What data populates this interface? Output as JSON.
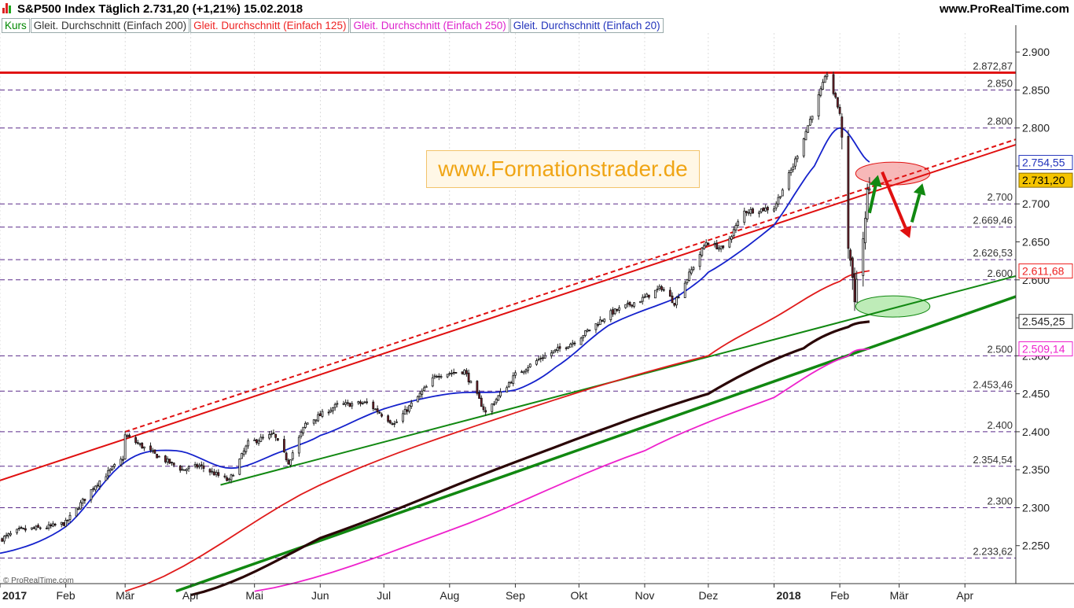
{
  "header": {
    "title": "S&P500 Index    Täglich    2.731,20 (+1,21%)    15.02.2018",
    "source": "www.ProRealTime.com"
  },
  "legend": [
    {
      "label": "Kurs",
      "color": "#008800"
    },
    {
      "label": "Gleit. Durchschnitt (Einfach 200)",
      "color": "#333333"
    },
    {
      "label": "Gleit. Durchschnitt (Einfach 125)",
      "color": "#ee2222"
    },
    {
      "label": "Gleit. Durchschnitt (Einfach 250)",
      "color": "#dd22cc"
    },
    {
      "label": "Gleit. Durchschnitt (Einfach 20)",
      "color": "#2233bb"
    }
  ],
  "watermark": "www.Formationstrader.de",
  "copyright": "© ProRealTime.com",
  "colors": {
    "up_candle": "#ffffff",
    "down_candle": "#7a1f2a",
    "wick": "#222222",
    "resistance": "#e01010",
    "support": "#118811",
    "ma200": "#2a0606",
    "ma125": "#e01b1b",
    "ma250": "#ee22cc",
    "ma20": "#1522cc",
    "dashed_level": "#5a2a8a",
    "grid": "#c8c8c8",
    "arrow_up": "#118811",
    "arrow_down": "#e01010"
  },
  "chart_data": {
    "type": "candlestick",
    "title": "S&P500 Index",
    "period": "Täglich",
    "last_price": "2.731,20",
    "change": "+1,21%",
    "date": "15.02.2018",
    "ylim": [
      2200,
      2925
    ],
    "xlim": [
      "2017-01-01",
      "2018-04-25"
    ],
    "y_ticks": [
      "2.250",
      "2.300",
      "2.350",
      "2.400",
      "2.450",
      "2.500",
      "2.550",
      "2.600",
      "2.650",
      "2.700",
      "2.750",
      "2.800",
      "2.850",
      "2.900"
    ],
    "x_ticks": [
      {
        "date": "2017-01-01",
        "label": "2017",
        "bold": true
      },
      {
        "date": "2017-02-01",
        "label": "Feb"
      },
      {
        "date": "2017-03-01",
        "label": "Mär"
      },
      {
        "date": "2017-04-01",
        "label": "Apr"
      },
      {
        "date": "2017-05-01",
        "label": "Mai"
      },
      {
        "date": "2017-06-01",
        "label": "Jun"
      },
      {
        "date": "2017-07-01",
        "label": "Jul"
      },
      {
        "date": "2017-08-01",
        "label": "Aug"
      },
      {
        "date": "2017-09-01",
        "label": "Sep"
      },
      {
        "date": "2017-10-01",
        "label": "Okt"
      },
      {
        "date": "2017-11-01",
        "label": "Nov"
      },
      {
        "date": "2017-12-01",
        "label": "Dez"
      },
      {
        "date": "2018-01-01",
        "label": "2018",
        "bold": true
      },
      {
        "date": "2018-02-01",
        "label": "Feb"
      },
      {
        "date": "2018-03-01",
        "label": "Mär"
      },
      {
        "date": "2018-04-01",
        "label": "Apr"
      }
    ],
    "horizontal_levels": [
      {
        "value": 2872.87,
        "label": "2.872,87",
        "style": "solid-red"
      },
      {
        "value": 2850,
        "label": "2.850",
        "style": "dashed"
      },
      {
        "value": 2800,
        "label": "2.800",
        "style": "dashed"
      },
      {
        "value": 2700,
        "label": "2.700",
        "style": "dashed"
      },
      {
        "value": 2669.46,
        "label": "2.669,46",
        "style": "dashed"
      },
      {
        "value": 2626.53,
        "label": "2.626,53",
        "style": "dashed"
      },
      {
        "value": 2600,
        "label": "2.600",
        "style": "dashed"
      },
      {
        "value": 2500,
        "label": "2.500",
        "style": "dashed"
      },
      {
        "value": 2453.46,
        "label": "2.453,46",
        "style": "dashed"
      },
      {
        "value": 2400,
        "label": "2.400",
        "style": "dashed"
      },
      {
        "value": 2354.54,
        "label": "2.354,54",
        "style": "dashed"
      },
      {
        "value": 2300,
        "label": "2.300",
        "style": "dashed"
      },
      {
        "value": 2233.62,
        "label": "2.233,62",
        "style": "dashed"
      }
    ],
    "value_tags": [
      {
        "value": 2754.55,
        "label": "2.754,55",
        "series": "ma20"
      },
      {
        "value": 2731.2,
        "label": "2.731,20",
        "series": "price"
      },
      {
        "value": 2611.68,
        "label": "2.611,68",
        "series": "ma125"
      },
      {
        "value": 2545.25,
        "label": "2.545,25",
        "series": "ma200"
      },
      {
        "value": 2509.14,
        "label": "2.509,14",
        "series": "ma250"
      }
    ],
    "price_path": [
      [
        "2017-01-01",
        2258
      ],
      [
        "2017-01-10",
        2270
      ],
      [
        "2017-01-25",
        2275
      ],
      [
        "2017-02-01",
        2280
      ],
      [
        "2017-02-15",
        2330
      ],
      [
        "2017-02-28",
        2365
      ],
      [
        "2017-03-01",
        2395
      ],
      [
        "2017-03-15",
        2370
      ],
      [
        "2017-03-28",
        2350
      ],
      [
        "2017-04-05",
        2355
      ],
      [
        "2017-04-19",
        2335
      ],
      [
        "2017-04-28",
        2385
      ],
      [
        "2017-05-10",
        2396
      ],
      [
        "2017-05-17",
        2360
      ],
      [
        "2017-05-25",
        2410
      ],
      [
        "2017-06-09",
        2435
      ],
      [
        "2017-06-23",
        2438
      ],
      [
        "2017-07-06",
        2410
      ],
      [
        "2017-07-26",
        2475
      ],
      [
        "2017-08-08",
        2480
      ],
      [
        "2017-08-18",
        2425
      ],
      [
        "2017-09-01",
        2475
      ],
      [
        "2017-09-13",
        2497
      ],
      [
        "2017-09-29",
        2519
      ],
      [
        "2017-10-15",
        2555
      ],
      [
        "2017-10-31",
        2575
      ],
      [
        "2017-11-09",
        2590
      ],
      [
        "2017-11-15",
        2570
      ],
      [
        "2017-11-30",
        2650
      ],
      [
        "2017-12-08",
        2640
      ],
      [
        "2017-12-18",
        2690
      ],
      [
        "2018-01-01",
        2695
      ],
      [
        "2018-01-10",
        2750
      ],
      [
        "2018-01-26",
        2872
      ],
      [
        "2018-02-01",
        2820
      ],
      [
        "2018-02-05",
        2648
      ],
      [
        "2018-02-08",
        2581
      ],
      [
        "2018-02-12",
        2656
      ],
      [
        "2018-02-15",
        2731
      ]
    ],
    "series": [
      {
        "name": "Gleit. Durchschnitt (Einfach 20)",
        "key": "ma20",
        "points": [
          [
            "2017-01-01",
            2240
          ],
          [
            "2017-02-01",
            2275
          ],
          [
            "2017-03-01",
            2360
          ],
          [
            "2017-03-25",
            2375
          ],
          [
            "2017-04-20",
            2352
          ],
          [
            "2017-05-15",
            2375
          ],
          [
            "2017-06-01",
            2395
          ],
          [
            "2017-07-01",
            2430
          ],
          [
            "2017-08-01",
            2450
          ],
          [
            "2017-09-01",
            2455
          ],
          [
            "2017-09-20",
            2485
          ],
          [
            "2017-10-15",
            2540
          ],
          [
            "2017-11-15",
            2575
          ],
          [
            "2017-12-01",
            2610
          ],
          [
            "2018-01-01",
            2672
          ],
          [
            "2018-01-20",
            2750
          ],
          [
            "2018-02-01",
            2800
          ],
          [
            "2018-02-15",
            2755
          ]
        ]
      },
      {
        "name": "Gleit. Durchschnitt (Einfach 125)",
        "key": "ma125",
        "points": [
          [
            "2017-03-01",
            2190
          ],
          [
            "2017-06-01",
            2330
          ],
          [
            "2017-09-01",
            2425
          ],
          [
            "2017-12-01",
            2500
          ],
          [
            "2018-01-01",
            2550
          ],
          [
            "2018-02-01",
            2598
          ],
          [
            "2018-02-15",
            2612
          ]
        ]
      },
      {
        "name": "Gleit. Durchschnitt (Einfach 200)",
        "key": "ma200",
        "points": [
          [
            "2017-04-01",
            2185
          ],
          [
            "2017-06-01",
            2260
          ],
          [
            "2017-09-01",
            2360
          ],
          [
            "2017-12-01",
            2450
          ],
          [
            "2018-01-15",
            2510
          ],
          [
            "2018-02-05",
            2538
          ],
          [
            "2018-02-15",
            2545
          ]
        ]
      },
      {
        "name": "Gleit. Durchschnitt (Einfach 250)",
        "key": "ma250",
        "points": [
          [
            "2017-05-01",
            2190
          ],
          [
            "2017-08-01",
            2270
          ],
          [
            "2017-11-01",
            2375
          ],
          [
            "2018-01-01",
            2445
          ],
          [
            "2018-02-05",
            2500
          ],
          [
            "2018-02-15",
            2509
          ]
        ]
      }
    ],
    "trend_lines": [
      {
        "key": "resistance-channel-solid",
        "color": "resistance",
        "dash": false,
        "width": 2,
        "from": [
          "2016-12-31",
          2335
        ],
        "to": [
          "2018-04-25",
          2778
        ]
      },
      {
        "key": "resistance-channel-dashed",
        "color": "resistance",
        "dash": true,
        "width": 2,
        "from": [
          "2017-03-01",
          2400
        ],
        "to": [
          "2018-04-25",
          2785
        ]
      },
      {
        "key": "support-line-thin",
        "color": "support",
        "dash": false,
        "width": 2,
        "from": [
          "2017-04-15",
          2330
        ],
        "to": [
          "2018-04-25",
          2605
        ]
      },
      {
        "key": "support-line-thick",
        "color": "support",
        "dash": false,
        "width": 3.5,
        "from": [
          "2017-03-25",
          2190
        ],
        "to": [
          "2018-04-25",
          2578
        ]
      }
    ],
    "zones": [
      {
        "key": "resistance-zone",
        "color": "#f4a0a0",
        "stroke": "#e01010",
        "center": [
          "2018-02-26",
          2740
        ],
        "rx_days": 17.5,
        "ry_value": 15
      },
      {
        "key": "support-zone",
        "color": "#a8e6a0",
        "stroke": "#118811",
        "center": [
          "2018-02-26",
          2565
        ],
        "rx_days": 17.5,
        "ry_value": 14
      }
    ],
    "arrows": [
      {
        "key": "arrow-up-1",
        "color": "arrow_up",
        "from": [
          "2018-02-15",
          2688
        ],
        "to": [
          "2018-02-19",
          2738
        ]
      },
      {
        "key": "arrow-down",
        "color": "arrow_down",
        "from": [
          "2018-02-21",
          2742
        ],
        "to": [
          "2018-03-06",
          2655
        ]
      },
      {
        "key": "arrow-up-2",
        "color": "arrow_up",
        "from": [
          "2018-03-07",
          2676
        ],
        "to": [
          "2018-03-12",
          2727
        ]
      }
    ]
  }
}
